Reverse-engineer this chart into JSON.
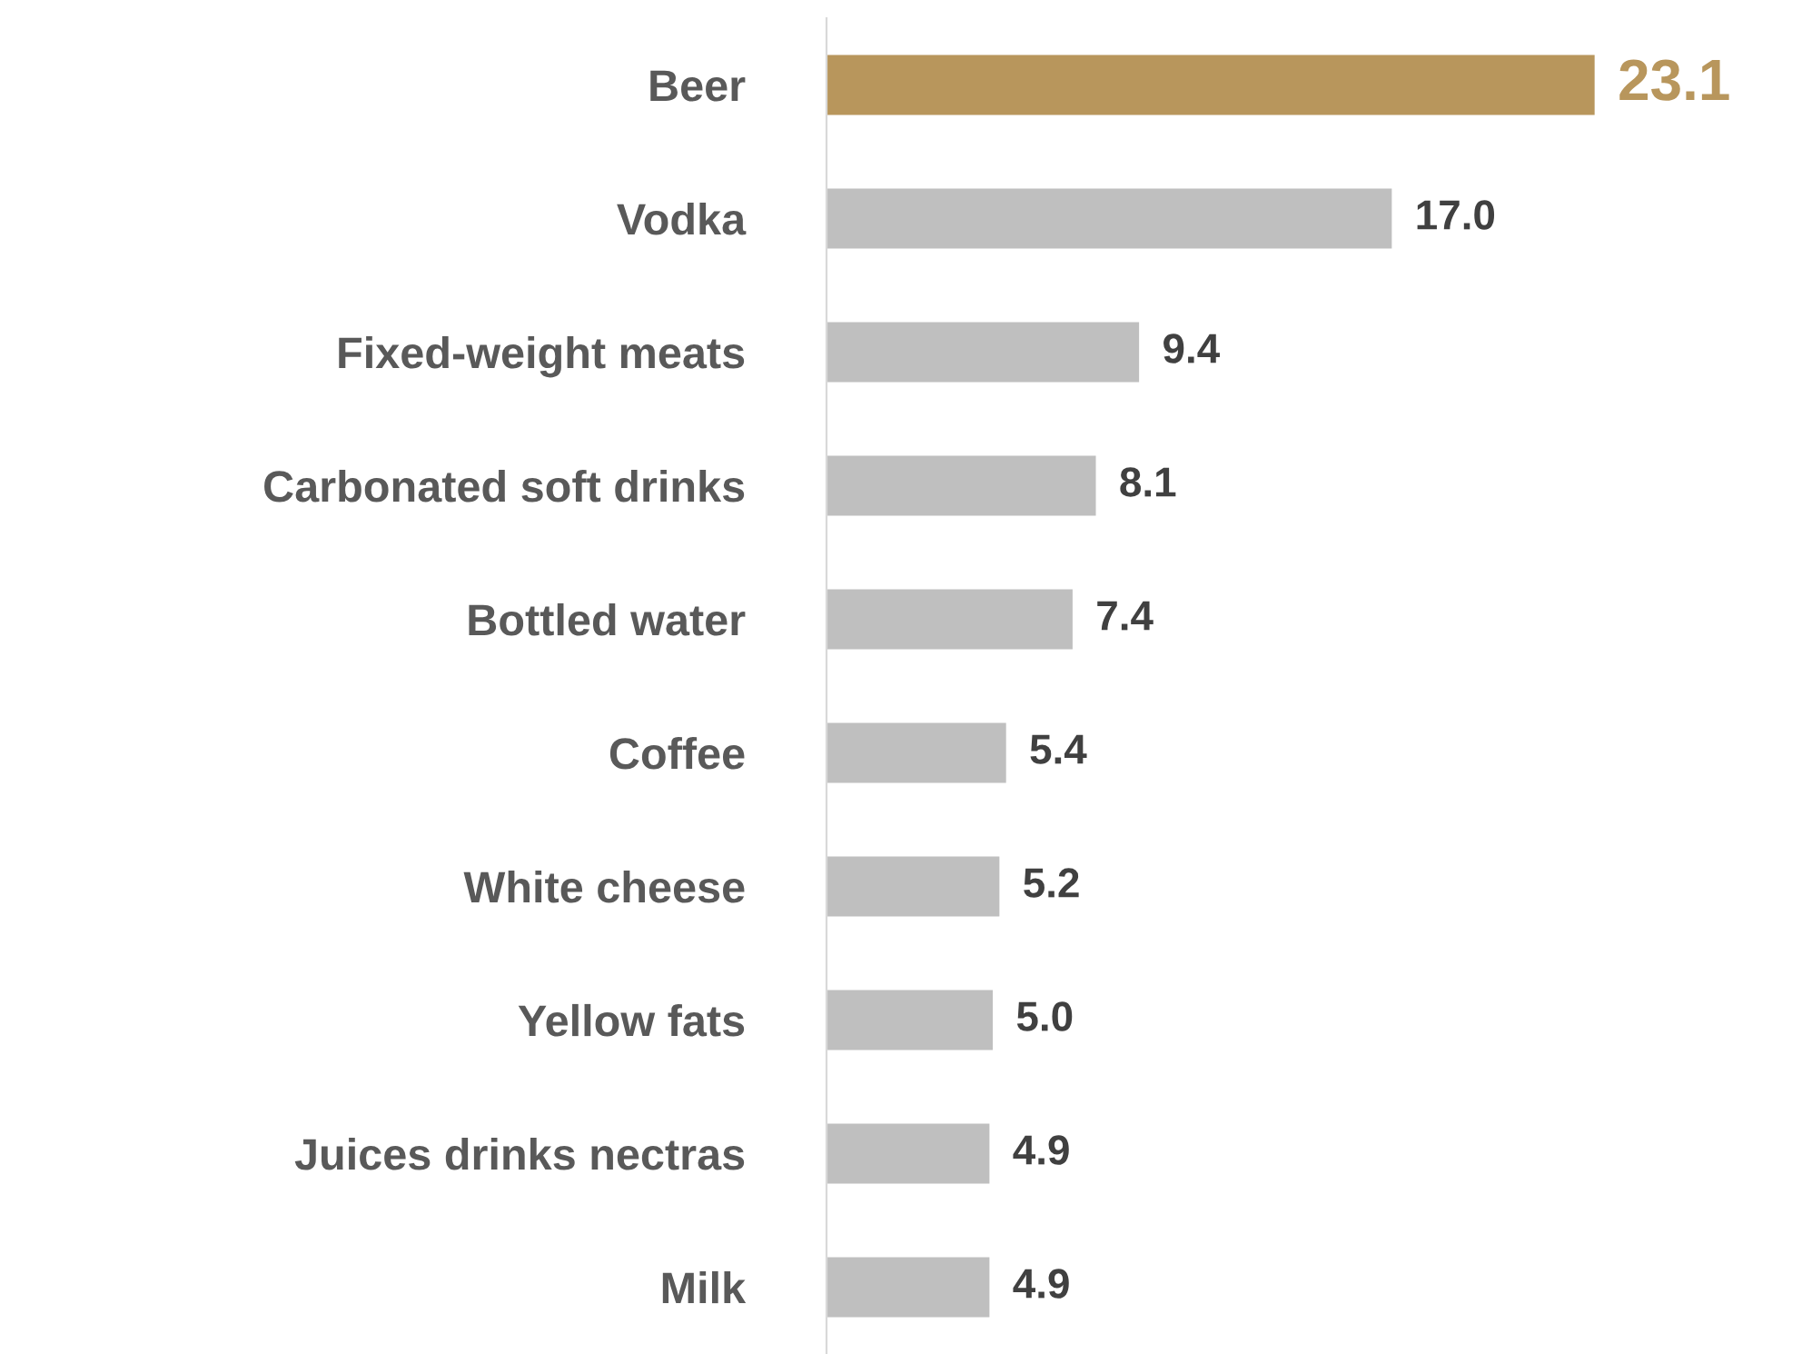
{
  "chart_data": {
    "type": "bar",
    "orientation": "horizontal",
    "categories": [
      "Beer",
      "Vodka",
      "Fixed-weight meats",
      "Carbonated soft drinks",
      "Bottled water",
      "Coffee",
      "White cheese",
      "Yellow fats",
      "Juices drinks nectras",
      "Milk"
    ],
    "values": [
      23.1,
      17.0,
      9.4,
      8.1,
      7.4,
      5.4,
      5.2,
      5.0,
      4.9,
      4.9
    ],
    "colors": [
      "#b8965c",
      "#bfbfbf",
      "#bfbfbf",
      "#bfbfbf",
      "#bfbfbf",
      "#bfbfbf",
      "#bfbfbf",
      "#bfbfbf",
      "#bfbfbf",
      "#bfbfbf"
    ],
    "value_labels": [
      "23.1",
      "17.0",
      "9.4",
      "8.1",
      "7.4",
      "5.4",
      "5.2",
      "5.0",
      "4.9",
      "4.9"
    ],
    "grid": false,
    "legend": false
  }
}
